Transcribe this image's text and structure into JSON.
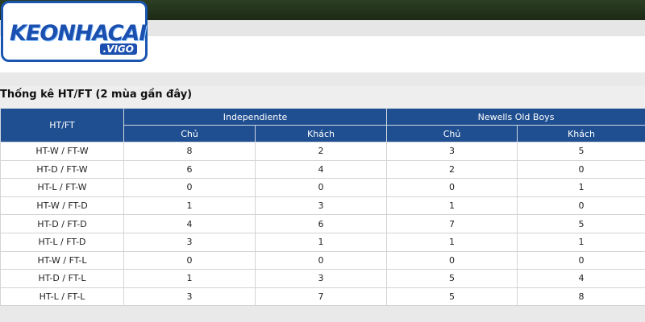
{
  "logo": {
    "text": "KEONHACAI",
    "subtext": ".VIGO"
  },
  "section_title": "Thống kê HT/FT (2 mùa gần đây)",
  "table": {
    "corner": "HT/FT",
    "teams": [
      "Independiente",
      "Newells Old Boys"
    ],
    "subheaders": [
      "Chủ",
      "Khách",
      "Chủ",
      "Khách"
    ],
    "rows": [
      [
        "HT-W / FT-W",
        8,
        2,
        3,
        5
      ],
      [
        "HT-D / FT-W",
        6,
        4,
        2,
        0
      ],
      [
        "HT-L / FT-W",
        0,
        0,
        0,
        1
      ],
      [
        "HT-W / FT-D",
        1,
        3,
        1,
        0
      ],
      [
        "HT-D / FT-D",
        4,
        6,
        7,
        5
      ],
      [
        "HT-L / FT-D",
        3,
        1,
        1,
        1
      ],
      [
        "HT-W / FT-L",
        0,
        0,
        0,
        0
      ],
      [
        "HT-D / FT-L",
        1,
        3,
        5,
        4
      ],
      [
        "HT-L / FT-L",
        3,
        7,
        5,
        8
      ]
    ]
  }
}
